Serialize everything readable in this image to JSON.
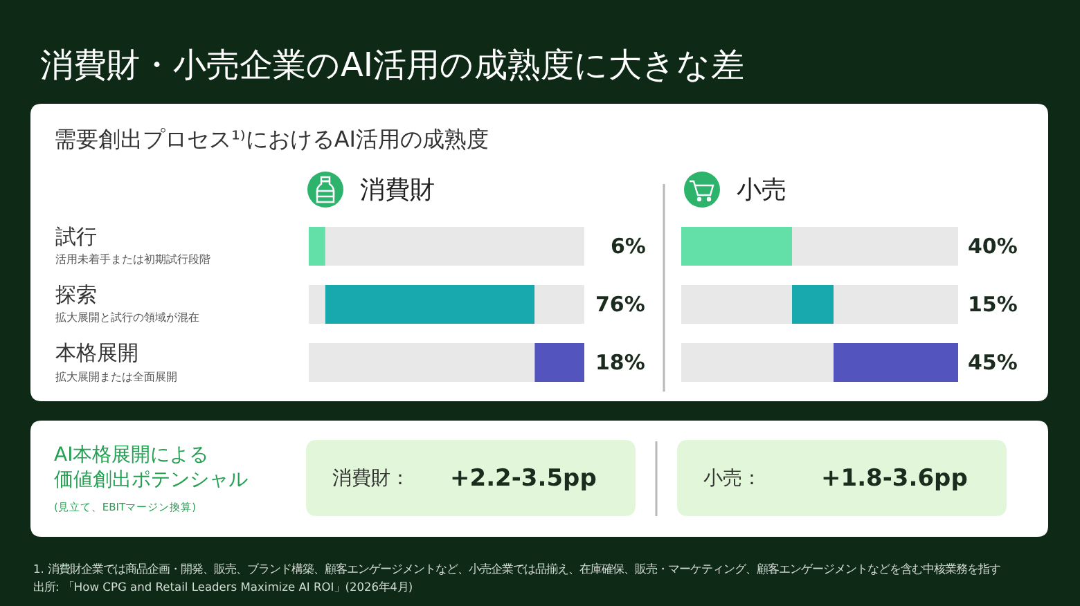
{
  "chart_data": [
    {
      "type": "other",
      "title": "消費財・小売企業のAI活用の成熟度に大きな差",
      "subtitle": "需要創出プロセス¹⁾におけるAI活用の成熟度",
      "annotations": [
        "1. 消費財企業では商品企画・開発、販売、ブランド構築、顧客エンゲージメントなど、小売企業では品揃え、在庫確保、販売・マーケティング、顧客エンゲージメントなどを含む中核業務を指す",
        "出所: 「How CPG and Retail Leaders Maximize AI ROI」(2026年4月)"
      ]
    },
    {
      "type": "bar",
      "orientation": "horizontal",
      "stacked": true,
      "title": "消費財",
      "categories": [
        "試行",
        "探索",
        "本格展開"
      ],
      "annotations": [
        "活用未着手または初期試行段階",
        "拡大展開と試行の領域が混在",
        "拡大展開または全面展開"
      ],
      "xlim": [
        0,
        100
      ],
      "tick_labels": "y",
      "series": [
        {
          "color": "#e8e8e8",
          "values": [
            null,
            6,
            82
          ]
        },
        {
          "colors": [
            "#62e0a8",
            "#18a9af",
            "#5454bf"
          ],
          "values": [
            6,
            76,
            18
          ],
          "value_labels": [
            "6%",
            "76%",
            "18%"
          ]
        },
        {
          "color": "#e8e8e8",
          "values": [
            94,
            18,
            null
          ]
        }
      ]
    },
    {
      "type": "bar",
      "orientation": "horizontal",
      "stacked": true,
      "title": "小売",
      "categories": [
        null,
        null,
        null
      ],
      "xlim": [
        0,
        100
      ],
      "tick_labels": false,
      "series": [
        {
          "color": "#e8e8e8",
          "values": [
            null,
            40,
            55
          ]
        },
        {
          "colors": [
            "#62e0a8",
            "#18a9af",
            "#5454bf"
          ],
          "values": [
            40,
            15,
            45
          ],
          "value_labels": [
            "40%",
            "15%",
            "45%"
          ]
        },
        {
          "color": "#e8e8e8",
          "values": [
            60,
            45,
            null
          ]
        }
      ]
    },
    {
      "type": "other",
      "title": "AI本格展開による価値創出ポテンシャル",
      "subtitle": "(見立て、EBITマージン換算)",
      "annotations": [
        "消費財：",
        "+2.2-3.5pp",
        "小売：",
        "+1.8-3.6pp"
      ]
    }
  ]
}
